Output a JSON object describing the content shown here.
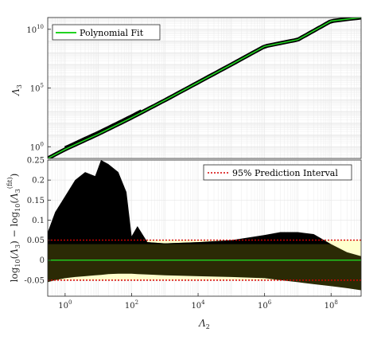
{
  "colors": {
    "fit": "#21d321",
    "points": "#000000",
    "interval_line": "#d60000",
    "interval_fill": "#ffffcc",
    "band_dark": "#2b2a05",
    "grid": "#e6e6e6"
  },
  "chart_data": [
    {
      "type": "scatter",
      "title": "",
      "xlabel": "",
      "ylabel": "Λ3",
      "ylabel_main": "Λ",
      "ylabel_sub": "3",
      "xscale": "log",
      "yscale": "log",
      "xlim": [
        0.3,
        800000000
      ],
      "ylim": [
        0.1,
        100000000000
      ],
      "grid": true,
      "legend": {
        "placement": "top-left",
        "entries": [
          "Polynomial Fit"
        ]
      },
      "y_tick_labels": [
        {
          "base": "10",
          "exp": "0",
          "value": 1
        },
        {
          "base": "10",
          "exp": "5",
          "value": 100000
        },
        {
          "base": "10",
          "exp": "10",
          "value": 10000000000
        }
      ],
      "series": [
        {
          "name": "Polynomial Fit",
          "x": [
            0.3,
            1,
            10,
            100,
            1000,
            10000,
            100000,
            1000000,
            10000000,
            100000000,
            800000000
          ],
          "y": [
            0.1,
            0.6,
            12,
            300,
            9000,
            300000,
            10000000,
            350000000,
            1300000000,
            50000000000,
            100000000000
          ]
        }
      ]
    },
    {
      "type": "scatter",
      "title": "",
      "xlabel": "Λ2",
      "xlabel_main": "Λ",
      "xlabel_sub": "2",
      "ylabel": "log10(Λ3) − log10(Λ3(fit))",
      "xscale": "log",
      "xlim": [
        0.3,
        800000000
      ],
      "ylim": [
        -0.09,
        0.25
      ],
      "grid": true,
      "legend": {
        "placement": "top-right",
        "entries": [
          "95% Prediction Interval"
        ]
      },
      "x_tick_labels": [
        {
          "base": "10",
          "exp": "0",
          "value": 1
        },
        {
          "base": "10",
          "exp": "2",
          "value": 100
        },
        {
          "base": "10",
          "exp": "4",
          "value": 10000
        },
        {
          "base": "10",
          "exp": "6",
          "value": 1000000
        },
        {
          "base": "10",
          "exp": "8",
          "value": 100000000
        }
      ],
      "y_tick_labels": [
        "-0.05",
        "0",
        "0.05",
        "0.1",
        "0.15",
        "0.2",
        "0.25"
      ],
      "y_ticks": [
        -0.05,
        0,
        0.05,
        0.1,
        0.15,
        0.2,
        0.25
      ],
      "prediction_interval": [
        -0.05,
        0.05
      ],
      "series": [
        {
          "name": "Polynomial Fit",
          "x": [
            0.3,
            800000000
          ],
          "y": [
            0,
            0
          ]
        }
      ],
      "residual_envelope": {
        "x": [
          0.3,
          0.5,
          1,
          2,
          4,
          8,
          12,
          20,
          40,
          70,
          100,
          150,
          300,
          1000,
          10000,
          100000,
          1000000,
          3000000,
          10000000,
          30000000,
          100000000,
          300000000,
          800000000
        ],
        "upper": [
          0.07,
          0.12,
          0.16,
          0.2,
          0.22,
          0.21,
          0.25,
          0.24,
          0.22,
          0.17,
          0.06,
          0.085,
          0.045,
          0.042,
          0.045,
          0.05,
          0.063,
          0.07,
          0.07,
          0.065,
          0.04,
          0.02,
          0.01
        ],
        "lower": [
          -0.055,
          -0.05,
          -0.045,
          -0.042,
          -0.04,
          -0.038,
          -0.037,
          -0.035,
          -0.034,
          -0.034,
          -0.034,
          -0.035,
          -0.036,
          -0.038,
          -0.04,
          -0.042,
          -0.045,
          -0.05,
          -0.055,
          -0.06,
          -0.065,
          -0.07,
          -0.075
        ]
      }
    }
  ]
}
